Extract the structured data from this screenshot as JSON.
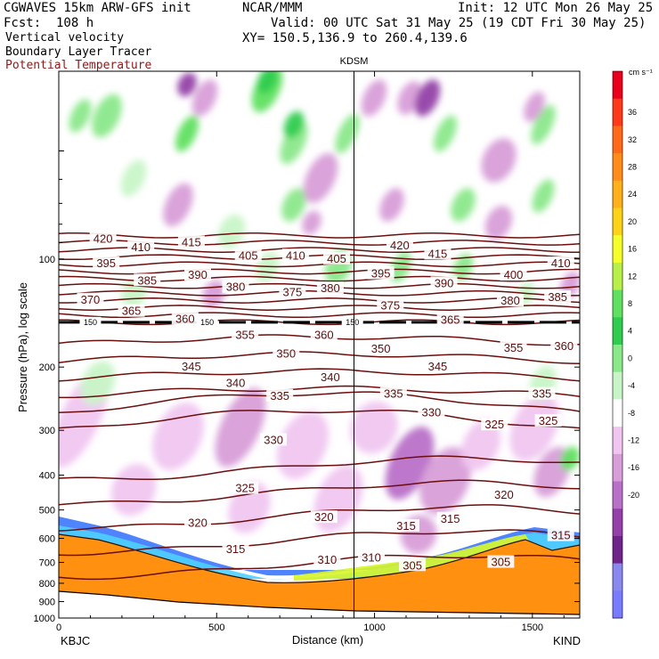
{
  "header": {
    "model": "CGWAVES 15km ARW-GFS init",
    "org": "NCAR/MMM",
    "init": "Init: 12 UTC Mon 26 May 25",
    "fcst": "Fcst:  108 h",
    "valid": "Valid: 00 UTC Sat 31 May 25 (19 CDT Fri 30 May 25)",
    "field1": "Vertical velocity",
    "xy": "XY= 150.5,136.9 to 260.4,139.6",
    "field2": "Boundary Layer Tracer",
    "field3": "Potential Temperature",
    "field3_color": "#8b1a1a"
  },
  "chart_data": {
    "type": "heatmap",
    "title": "",
    "xlabel": "Distance (km)",
    "ylabel": "Pressure (hPa), log scale",
    "xlim": [
      0,
      1650
    ],
    "ylim": [
      1000,
      30
    ],
    "x_ticks": [
      0,
      500,
      1000,
      1500
    ],
    "y_ticks": [
      100,
      200,
      300,
      400,
      500,
      600,
      700,
      800,
      900,
      1000
    ],
    "left_station": "KBJC",
    "right_station": "KIND",
    "marker_label": "KDSM",
    "marker_x_km": 935,
    "colorbar": {
      "unit": "cm s⁻¹",
      "levels": [
        36,
        32,
        28,
        24,
        20,
        16,
        12,
        8,
        4,
        0,
        -4,
        -8,
        -12,
        -16,
        -20
      ],
      "colors": [
        "#e8001c",
        "#ff3a1a",
        "#ff6a1a",
        "#ff8c1a",
        "#ffb01a",
        "#ffd21a",
        "#f5ff2a",
        "#b8f04a",
        "#5fe060",
        "#2fcc4f",
        "#8ae88a",
        "#c8f5c8",
        "#ffffff",
        "#f0c6f0",
        "#d89ed8",
        "#b970c8",
        "#9440a8",
        "#6e2488",
        "#8888ee",
        "#7a7aff"
      ],
      "major_labels": [
        36,
        32,
        28,
        24,
        20,
        16,
        12,
        8,
        4,
        0,
        -4,
        -8,
        -12,
        -16,
        -20
      ]
    },
    "tropopause_label": "150",
    "theta_contours": [
      {
        "value": 305,
        "color": "#6b0e0e"
      },
      {
        "value": 310,
        "color": "#6b0e0e"
      },
      {
        "value": 315,
        "color": "#6b0e0e"
      },
      {
        "value": 320,
        "color": "#6b0e0e"
      },
      {
        "value": 325,
        "color": "#6b0e0e"
      },
      {
        "value": 330,
        "color": "#6b0e0e"
      },
      {
        "value": 335,
        "color": "#6b0e0e"
      },
      {
        "value": 340,
        "color": "#6b0e0e"
      },
      {
        "value": 345,
        "color": "#6b0e0e"
      },
      {
        "value": 350,
        "color": "#6b0e0e"
      },
      {
        "value": 355,
        "color": "#6b0e0e"
      },
      {
        "value": 360,
        "color": "#6b0e0e"
      },
      {
        "value": 365,
        "color": "#6b0e0e"
      },
      {
        "value": 370,
        "color": "#6b0e0e"
      },
      {
        "value": 375,
        "color": "#6b0e0e"
      },
      {
        "value": 380,
        "color": "#6b0e0e"
      },
      {
        "value": 385,
        "color": "#6b0e0e"
      },
      {
        "value": 390,
        "color": "#6b0e0e"
      },
      {
        "value": 395,
        "color": "#6b0e0e"
      },
      {
        "value": 400,
        "color": "#6b0e0e"
      },
      {
        "value": 405,
        "color": "#6b0e0e"
      },
      {
        "value": 410,
        "color": "#6b0e0e"
      },
      {
        "value": 415,
        "color": "#6b0e0e"
      },
      {
        "value": 420,
        "color": "#6b0e0e"
      }
    ],
    "contour_labels": [
      {
        "text": "420",
        "x_km": 140,
        "p": 88
      },
      {
        "text": "410",
        "x_km": 260,
        "p": 93
      },
      {
        "text": "415",
        "x_km": 420,
        "p": 90
      },
      {
        "text": "395",
        "x_km": 150,
        "p": 103
      },
      {
        "text": "405",
        "x_km": 600,
        "p": 98
      },
      {
        "text": "410",
        "x_km": 750,
        "p": 98
      },
      {
        "text": "405",
        "x_km": 880,
        "p": 100
      },
      {
        "text": "420",
        "x_km": 1080,
        "p": 92
      },
      {
        "text": "415",
        "x_km": 1200,
        "p": 97
      },
      {
        "text": "410",
        "x_km": 1590,
        "p": 103
      },
      {
        "text": "385",
        "x_km": 280,
        "p": 115
      },
      {
        "text": "390",
        "x_km": 440,
        "p": 111
      },
      {
        "text": "380",
        "x_km": 560,
        "p": 120
      },
      {
        "text": "375",
        "x_km": 740,
        "p": 124
      },
      {
        "text": "380",
        "x_km": 860,
        "p": 121
      },
      {
        "text": "395",
        "x_km": 1020,
        "p": 110
      },
      {
        "text": "390",
        "x_km": 1220,
        "p": 117
      },
      {
        "text": "400",
        "x_km": 1440,
        "p": 111
      },
      {
        "text": "370",
        "x_km": 100,
        "p": 130
      },
      {
        "text": "365",
        "x_km": 230,
        "p": 140
      },
      {
        "text": "360",
        "x_km": 400,
        "p": 147
      },
      {
        "text": "375",
        "x_km": 1050,
        "p": 135
      },
      {
        "text": "380",
        "x_km": 1430,
        "p": 131
      },
      {
        "text": "385",
        "x_km": 1580,
        "p": 128
      },
      {
        "text": "355",
        "x_km": 590,
        "p": 163
      },
      {
        "text": "360",
        "x_km": 840,
        "p": 163
      },
      {
        "text": "365",
        "x_km": 1240,
        "p": 148
      },
      {
        "text": "350",
        "x_km": 1020,
        "p": 178
      },
      {
        "text": "350",
        "x_km": 720,
        "p": 184
      },
      {
        "text": "355",
        "x_km": 1440,
        "p": 177
      },
      {
        "text": "360",
        "x_km": 1600,
        "p": 175
      },
      {
        "text": "345",
        "x_km": 420,
        "p": 200
      },
      {
        "text": "345",
        "x_km": 1200,
        "p": 200
      },
      {
        "text": "340",
        "x_km": 560,
        "p": 222
      },
      {
        "text": "340",
        "x_km": 860,
        "p": 214
      },
      {
        "text": "335",
        "x_km": 700,
        "p": 241
      },
      {
        "text": "335",
        "x_km": 1060,
        "p": 238
      },
      {
        "text": "335",
        "x_km": 1530,
        "p": 238
      },
      {
        "text": "330",
        "x_km": 1180,
        "p": 268
      },
      {
        "text": "330",
        "x_km": 680,
        "p": 320
      },
      {
        "text": "325",
        "x_km": 1380,
        "p": 290
      },
      {
        "text": "325",
        "x_km": 1550,
        "p": 283
      },
      {
        "text": "325",
        "x_km": 590,
        "p": 436
      },
      {
        "text": "320",
        "x_km": 1410,
        "p": 455
      },
      {
        "text": "320",
        "x_km": 440,
        "p": 545
      },
      {
        "text": "320",
        "x_km": 840,
        "p": 525
      },
      {
        "text": "315",
        "x_km": 1100,
        "p": 555
      },
      {
        "text": "315",
        "x_km": 1240,
        "p": 530
      },
      {
        "text": "315",
        "x_km": 560,
        "p": 645
      },
      {
        "text": "315",
        "x_km": 1590,
        "p": 590
      },
      {
        "text": "310",
        "x_km": 850,
        "p": 690
      },
      {
        "text": "310",
        "x_km": 990,
        "p": 680
      },
      {
        "text": "305",
        "x_km": 1120,
        "p": 715
      },
      {
        "text": "305",
        "x_km": 1400,
        "p": 700
      }
    ]
  }
}
